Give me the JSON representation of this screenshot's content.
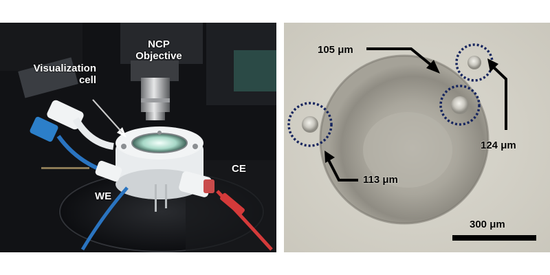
{
  "left_panel": {
    "labels": {
      "ncp_objective_line1": "NCP",
      "ncp_objective_line2": "Objective",
      "visualization_cell_line1": "Visualization",
      "visualization_cell_line2": "cell",
      "counter_electrode": "CE",
      "working_electrode": "WE"
    }
  },
  "right_panel": {
    "bubble_labels": {
      "top_bubble": "105 μm",
      "right_bubble": "124 μm",
      "left_bubble": "113 μm"
    },
    "scale_bar": {
      "label": "300 μm"
    }
  }
}
